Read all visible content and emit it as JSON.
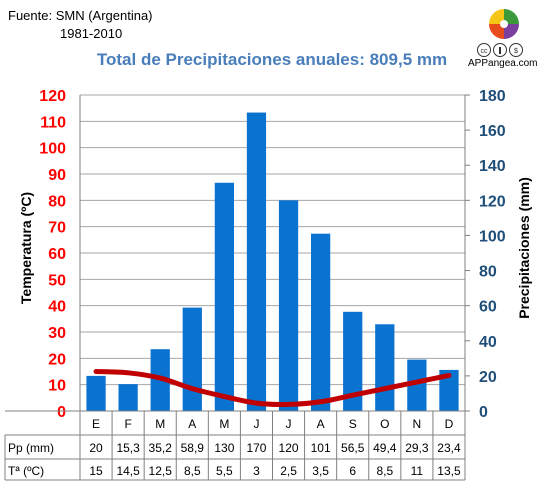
{
  "source": {
    "line1": "Fuente: SMN (Argentina)",
    "line2": "1981-2010"
  },
  "brand": {
    "name": "APPangea.com",
    "icon": "puzzle-globe-logo",
    "license_icons": "creative-commons-icons"
  },
  "colors": {
    "bars": "#0a72cf",
    "line": "#c00000",
    "left_axis": "#ff0000",
    "right_axis": "#1f4e79",
    "title": "#4a7ebb"
  },
  "chart_data": {
    "type": "bar",
    "title": "Total de Precipitaciones anuales: 809,5 mm",
    "categories": [
      "E",
      "F",
      "M",
      "A",
      "M",
      "J",
      "J",
      "A",
      "S",
      "O",
      "N",
      "D"
    ],
    "series": [
      {
        "name": "Pp (mm)",
        "type": "bar",
        "axis": "right",
        "values": [
          20,
          15.3,
          35.2,
          58.9,
          130,
          170,
          120,
          101,
          56.5,
          49.4,
          29.3,
          23.4
        ],
        "labels": [
          "20",
          "15,3",
          "35,2",
          "58,9",
          "130",
          "170",
          "120",
          "101",
          "56,5",
          "49,4",
          "29,3",
          "23,4"
        ]
      },
      {
        "name": "Tª (ºC)",
        "type": "line",
        "axis": "left",
        "values": [
          15,
          14.5,
          12.5,
          8.5,
          5.5,
          3,
          2.5,
          3.5,
          6,
          8.5,
          11,
          13.5
        ],
        "labels": [
          "15",
          "14,5",
          "12,5",
          "8,5",
          "5,5",
          "3",
          "2,5",
          "3,5",
          "6",
          "8,5",
          "11",
          "13,5"
        ]
      }
    ],
    "y_left": {
      "label": "Temperatura (ºC)",
      "range": [
        0,
        120
      ],
      "ticks": [
        0,
        10,
        20,
        30,
        40,
        50,
        60,
        70,
        80,
        90,
        100,
        110,
        120
      ]
    },
    "y_right": {
      "label": "Precipitaciones (mm)",
      "range": [
        0,
        180
      ],
      "ticks": [
        0,
        20,
        40,
        60,
        80,
        100,
        120,
        140,
        160,
        180
      ]
    },
    "grid": true,
    "legend": "data-table-below"
  }
}
